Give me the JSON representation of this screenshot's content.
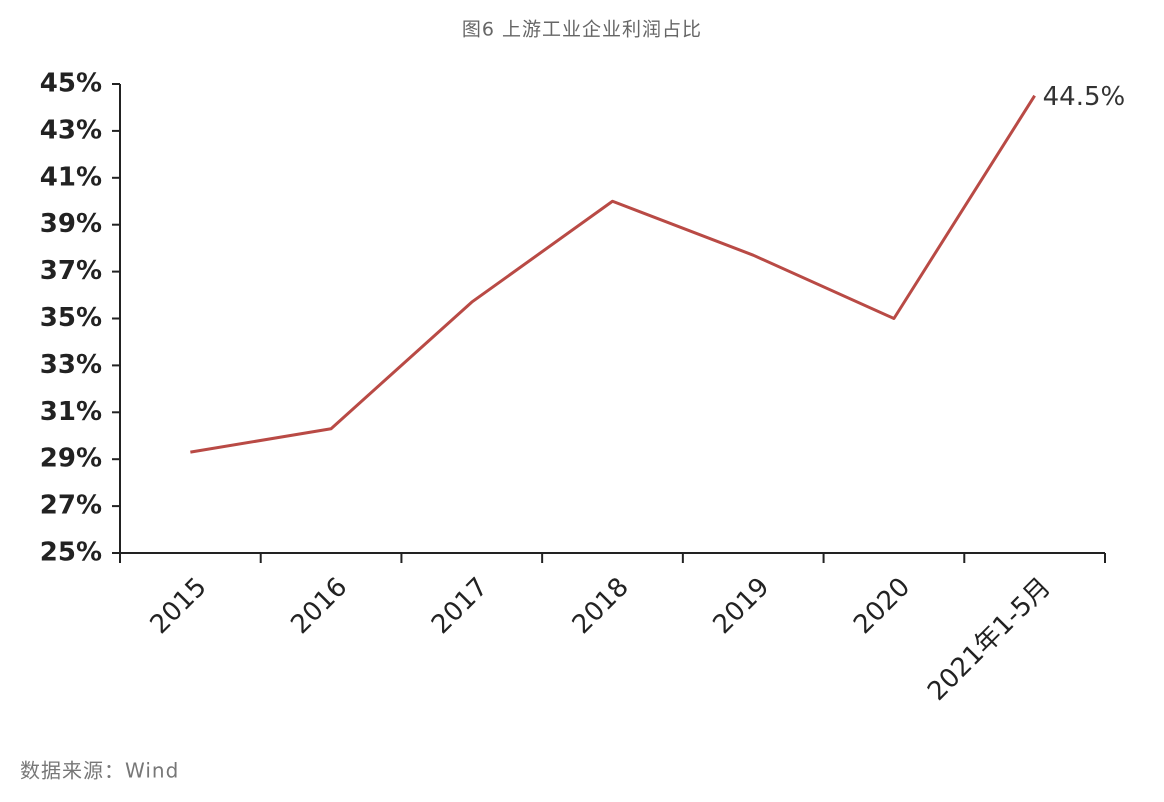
{
  "chart_data": {
    "type": "line",
    "title": "图6 上游工业企业利润占比",
    "source": "数据来源：Wind",
    "categories": [
      "2015",
      "2016",
      "2017",
      "2018",
      "2019",
      "2020",
      "2021年1-5月"
    ],
    "series": [
      {
        "color": "#b94a45",
        "values": [
          29.3,
          30.3,
          35.7,
          40.0,
          37.7,
          35.0,
          44.5
        ],
        "value_labels": [
          null,
          null,
          null,
          null,
          null,
          null,
          "44.5%"
        ]
      }
    ],
    "ylim": [
      25,
      45
    ],
    "yticks": [
      {
        "value": 25,
        "label": "25%"
      },
      {
        "value": 27,
        "label": "27%"
      },
      {
        "value": 29,
        "label": "29%"
      },
      {
        "value": 31,
        "label": "31%"
      },
      {
        "value": 33,
        "label": "33%"
      },
      {
        "value": 35,
        "label": "35%"
      },
      {
        "value": 37,
        "label": "37%"
      },
      {
        "value": 39,
        "label": "39%"
      },
      {
        "value": 41,
        "label": "41%"
      },
      {
        "value": 43,
        "label": "43%"
      },
      {
        "value": 45,
        "label": "45%"
      }
    ],
    "grid": false
  }
}
